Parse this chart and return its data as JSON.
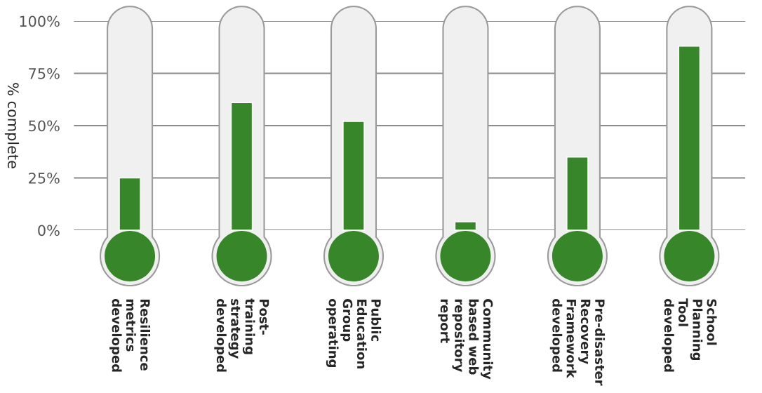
{
  "chart_data": {
    "type": "bar",
    "ylabel": "% complete",
    "categories": [
      "Resilience\nmetrics\ndeveloped",
      "Post-\ntraining\nstrategy\ndeveloped",
      "Public\nEducation\nGroup\noperating",
      "Community\nbased web\nrepository\nreport",
      "Pre-disaster\nRecovery\nFramework\ndeveloped",
      "School\nPlanning\nTool\ndeveloped"
    ],
    "values": [
      25,
      61,
      52,
      4,
      35,
      88
    ],
    "color": "#38862a",
    "ylim": [
      0,
      100
    ],
    "yticks": [
      {
        "value": 0,
        "label": "0%"
      },
      {
        "value": 25,
        "label": "25%"
      },
      {
        "value": 50,
        "label": "50%"
      },
      {
        "value": 75,
        "label": "75%"
      },
      {
        "value": 100,
        "label": "100%"
      }
    ],
    "grid": "y"
  }
}
